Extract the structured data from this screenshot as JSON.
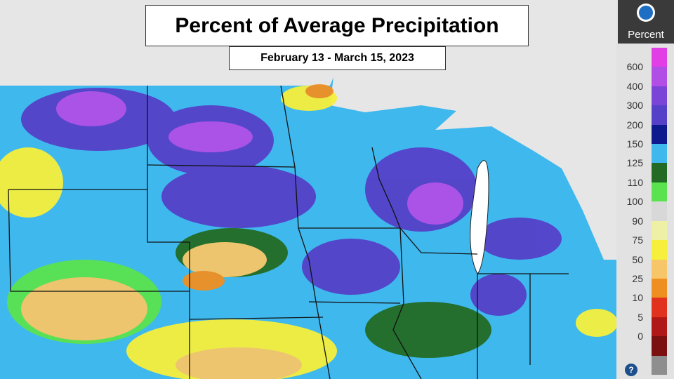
{
  "header": {
    "title": "Percent of Average Precipitation",
    "subtitle": "February 13 - March 15, 2023"
  },
  "legend": {
    "label": "Percent",
    "ticks": [
      600,
      400,
      300,
      200,
      150,
      125,
      110,
      100,
      90,
      75,
      50,
      25,
      10,
      5,
      0
    ],
    "colors": [
      "#e23ee6",
      "#b04ee6",
      "#7a45d6",
      "#5540c8",
      "#0c1a8e",
      "#3fb8ee",
      "#236b24",
      "#5ae34e",
      "#d8d8d8",
      "#eef0a6",
      "#f6ef3c",
      "#f6c668",
      "#ef8f22",
      "#e0321e",
      "#b01818",
      "#7a1010",
      "#8e8e8e"
    ]
  }
}
